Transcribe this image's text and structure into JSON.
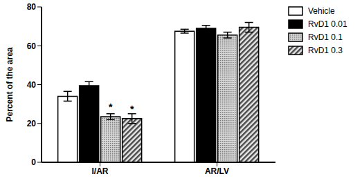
{
  "chart_data": {
    "type": "bar",
    "y_label": "Percent of the area",
    "categories": [
      "I/AR",
      "AR/LV"
    ],
    "series": [
      {
        "name": "Vehicle",
        "color": "#ffffff",
        "values": [
          34,
          67.5
        ],
        "errors": [
          2.5,
          1
        ]
      },
      {
        "name": "RvD1 0.01",
        "color": "#000000",
        "values": [
          39.5,
          69
        ],
        "errors": [
          2,
          1.5
        ]
      },
      {
        "name": "RvD1 0.1",
        "color": "#7a7a7a",
        "values": [
          23.5,
          65.5
        ],
        "errors": [
          1.5,
          1.5
        ]
      },
      {
        "name": "RvD1 0.3",
        "color": "#4a4a4a",
        "values": [
          22.5,
          69.5
        ],
        "errors": [
          2.5,
          2.5
        ]
      }
    ],
    "annotations": [
      {
        "text": "*",
        "category": "I/AR",
        "series": "RvD1 0.1"
      },
      {
        "text": "*",
        "category": "I/AR",
        "series": "RvD1 0.3"
      }
    ],
    "ylim": [
      0,
      80
    ],
    "yticks": [
      0,
      20,
      40,
      60,
      80
    ],
    "legend": "right"
  }
}
